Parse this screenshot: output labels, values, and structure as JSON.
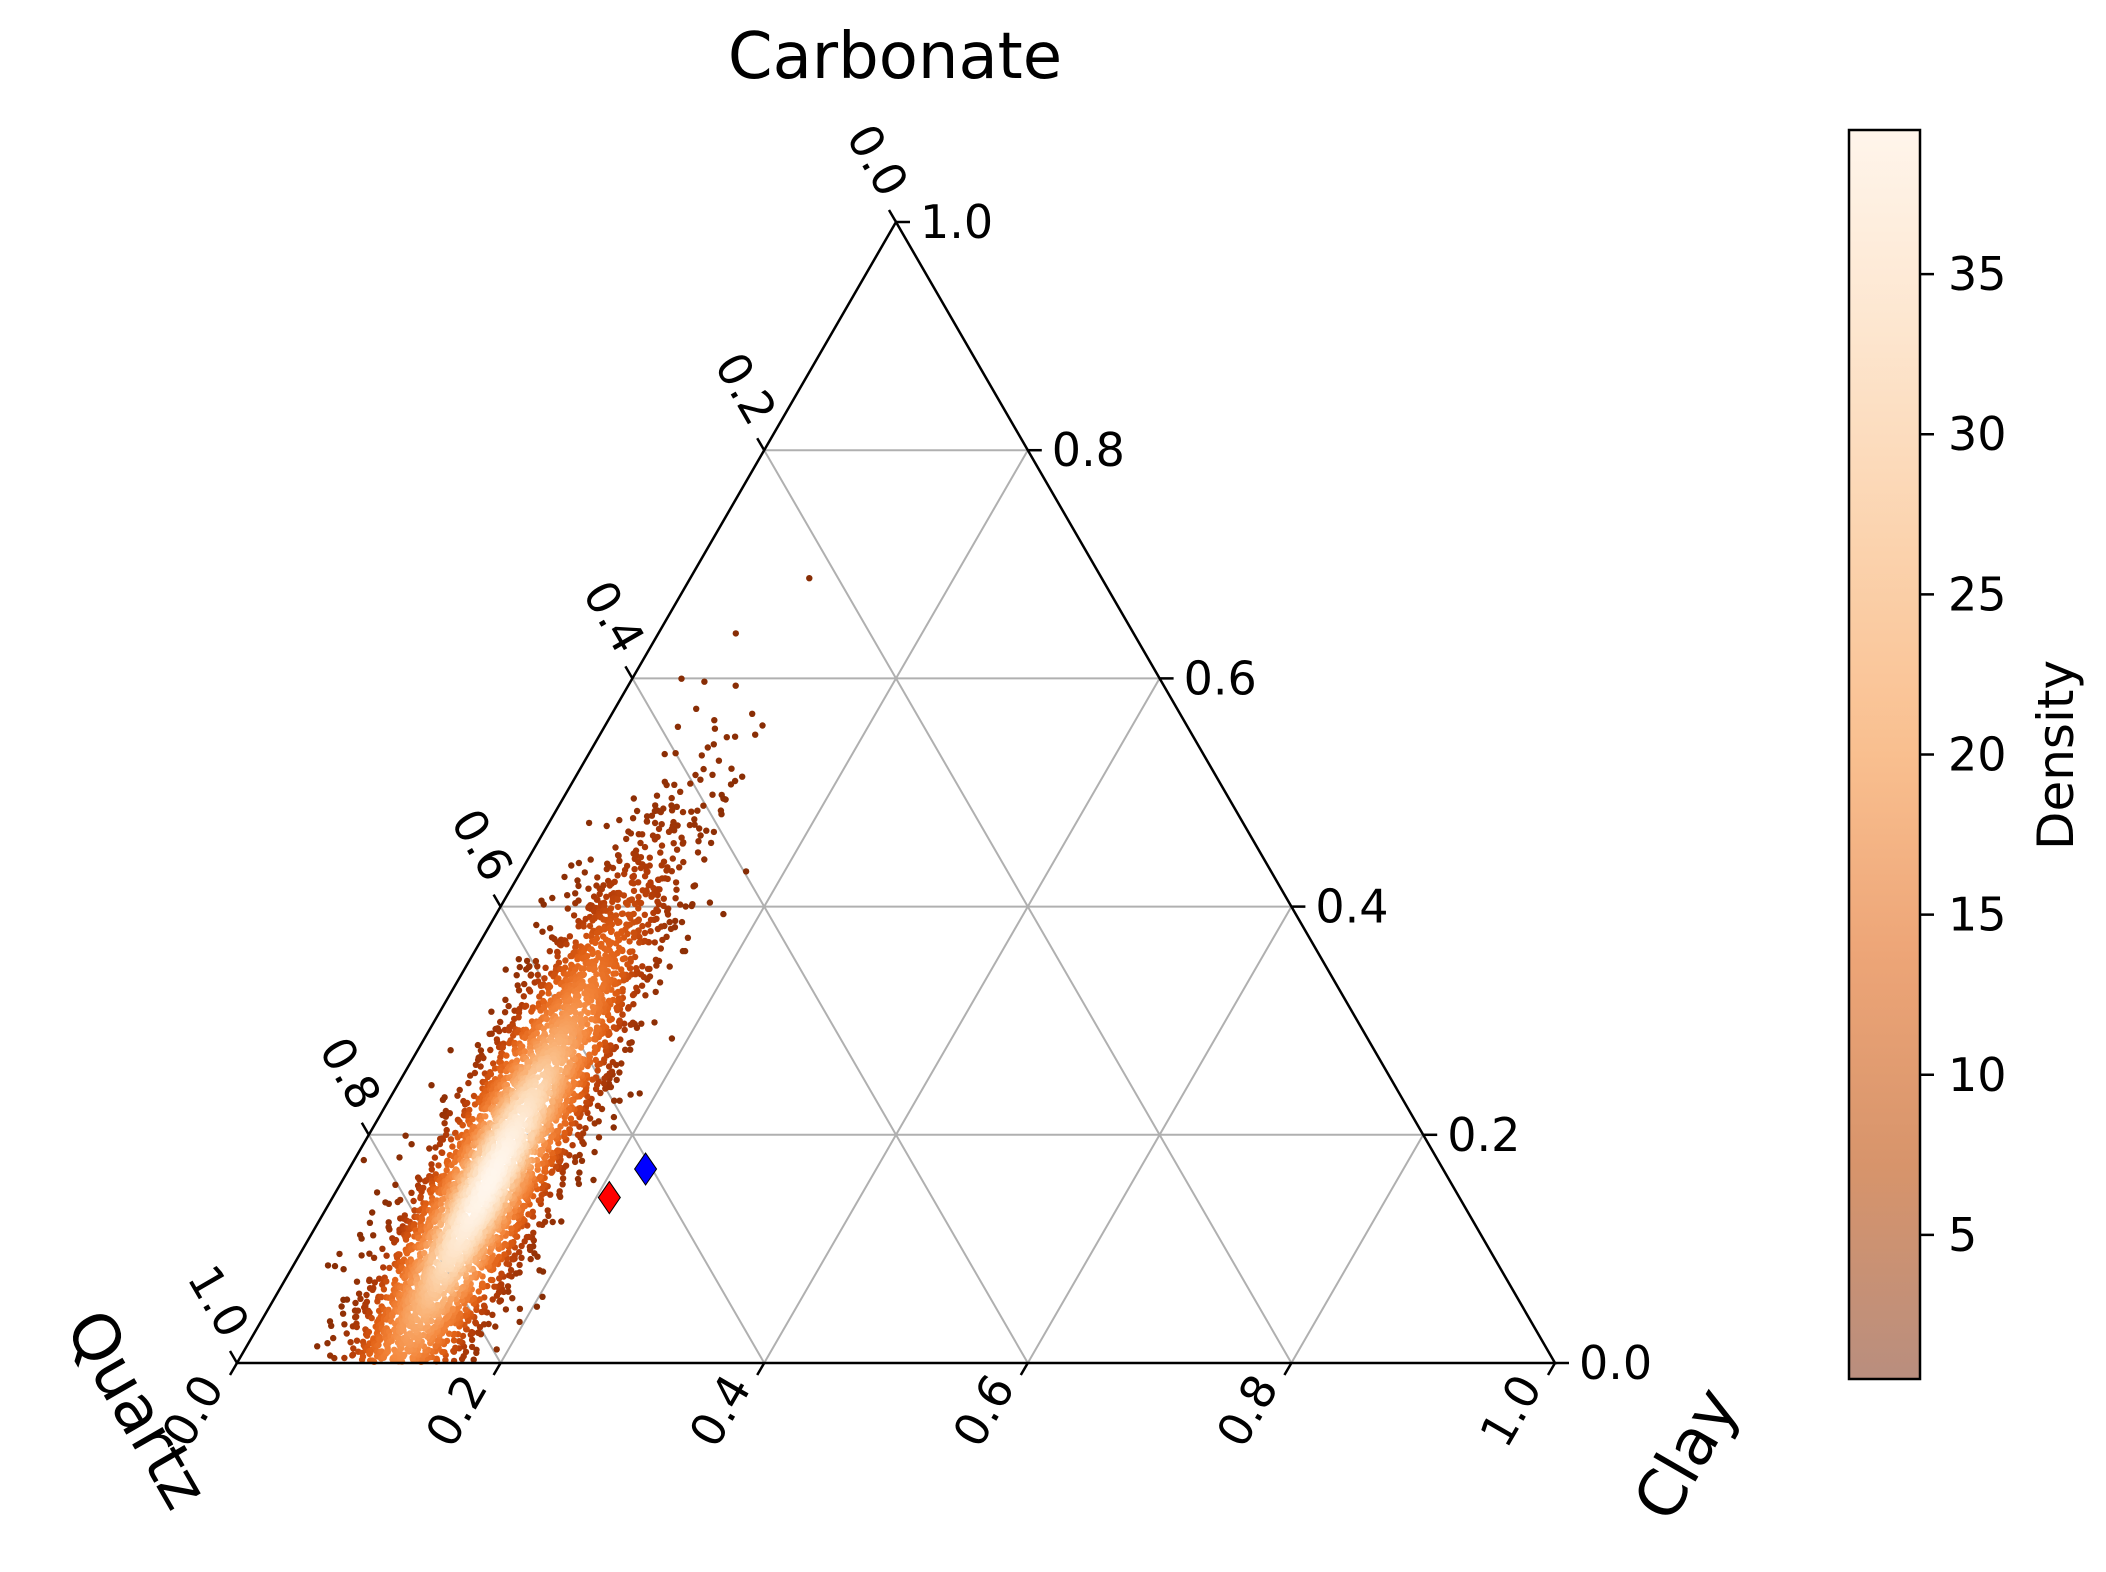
{
  "chart_data": {
    "type": "scatter",
    "subtype": "ternary",
    "axes": {
      "top": {
        "label": "Carbonate",
        "ticks": [
          "0.0",
          "0.2",
          "0.4",
          "0.6",
          "0.8",
          "1.0"
        ]
      },
      "right": {
        "label": "Clay",
        "ticks": [
          "0.0",
          "0.2",
          "0.4",
          "0.6",
          "0.8",
          "1.0"
        ]
      },
      "left": {
        "label": "Quartz",
        "ticks": [
          "0.0",
          "0.2",
          "0.4",
          "0.6",
          "0.8",
          "1.0"
        ]
      }
    },
    "grid": true,
    "grid_step": 0.2,
    "density_cloud": {
      "colormap": "Oranges",
      "center": {
        "carbonate": 0.16,
        "clay": 0.19,
        "quartz": 0.65
      },
      "carbonate_range": [
        0.0,
        0.45
      ],
      "clay_range": [
        0.1,
        0.35
      ],
      "quartz_range": [
        0.3,
        0.9
      ]
    },
    "markers": [
      {
        "name": "red-diamond",
        "shape": "diamond",
        "color": "#ff0000",
        "carbonate": 0.145,
        "clay": 0.21,
        "quartz": 0.645
      },
      {
        "name": "blue-diamond",
        "shape": "diamond",
        "color": "#0000ff",
        "carbonate": 0.17,
        "clay": 0.225,
        "quartz": 0.605
      }
    ],
    "colorbar": {
      "title": "Density",
      "ticks": [
        "5",
        "10",
        "15",
        "20",
        "25",
        "30",
        "35"
      ],
      "range": [
        0.5,
        39.5
      ],
      "colors": [
        "#b98e7e",
        "#d7946b",
        "#eda577",
        "#f9bf8f",
        "#fbd3ae",
        "#fde6cf",
        "#fff5eb"
      ]
    }
  }
}
